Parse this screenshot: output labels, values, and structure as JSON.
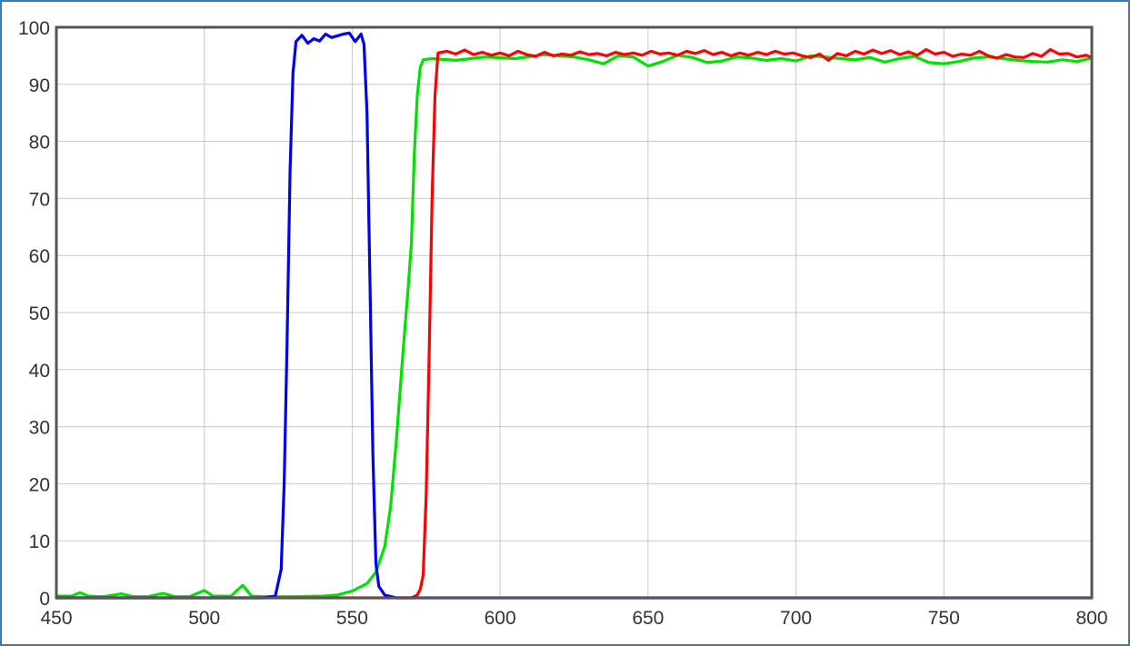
{
  "chart_data": {
    "type": "line",
    "title": "",
    "xlabel": "",
    "ylabel": "",
    "xlim": [
      450,
      800
    ],
    "ylim": [
      0,
      100
    ],
    "grid": true,
    "x_ticks": [
      "450",
      "500",
      "550",
      "600",
      "650",
      "700",
      "750",
      "800"
    ],
    "y_ticks": [
      "0",
      "10",
      "20",
      "30",
      "40",
      "50",
      "60",
      "70",
      "80",
      "90",
      "100"
    ],
    "series": [
      {
        "color": "#00e000",
        "points": [
          [
            450,
            0.3
          ],
          [
            455,
            0.3
          ],
          [
            458,
            0.9
          ],
          [
            461,
            0.3
          ],
          [
            466,
            0.2
          ],
          [
            472,
            0.7
          ],
          [
            476,
            0.2
          ],
          [
            481,
            0.2
          ],
          [
            486,
            0.8
          ],
          [
            490,
            0.2
          ],
          [
            495,
            0.2
          ],
          [
            500,
            1.3
          ],
          [
            503,
            0.3
          ],
          [
            509,
            0.3
          ],
          [
            513,
            2.2
          ],
          [
            516,
            0.3
          ],
          [
            520,
            0.2
          ],
          [
            530,
            0.2
          ],
          [
            540,
            0.3
          ],
          [
            545,
            0.5
          ],
          [
            550,
            1.2
          ],
          [
            555,
            2.5
          ],
          [
            558,
            4.5
          ],
          [
            561,
            9
          ],
          [
            563,
            16
          ],
          [
            565,
            28
          ],
          [
            567,
            42
          ],
          [
            569,
            55
          ],
          [
            570,
            62
          ],
          [
            571,
            78
          ],
          [
            572,
            88
          ],
          [
            573,
            93
          ],
          [
            574,
            94.3
          ],
          [
            577,
            94.5
          ],
          [
            585,
            94.2
          ],
          [
            595,
            94.8
          ],
          [
            605,
            94.5
          ],
          [
            615,
            95.2
          ],
          [
            625,
            94.8
          ],
          [
            630,
            94.3
          ],
          [
            635,
            93.6
          ],
          [
            640,
            95.0
          ],
          [
            645,
            94.8
          ],
          [
            650,
            93.2
          ],
          [
            655,
            94.0
          ],
          [
            660,
            95.1
          ],
          [
            665,
            94.7
          ],
          [
            670,
            93.8
          ],
          [
            675,
            94.1
          ],
          [
            680,
            94.8
          ],
          [
            685,
            94.6
          ],
          [
            690,
            94.2
          ],
          [
            695,
            94.5
          ],
          [
            700,
            94.1
          ],
          [
            705,
            95.0
          ],
          [
            710,
            94.8
          ],
          [
            715,
            94.5
          ],
          [
            720,
            94.3
          ],
          [
            725,
            94.7
          ],
          [
            730,
            93.9
          ],
          [
            735,
            94.5
          ],
          [
            740,
            94.9
          ],
          [
            745,
            93.8
          ],
          [
            750,
            93.6
          ],
          [
            755,
            94.0
          ],
          [
            760,
            94.6
          ],
          [
            765,
            94.8
          ],
          [
            770,
            94.5
          ],
          [
            775,
            94.2
          ],
          [
            780,
            94.0
          ],
          [
            785,
            93.9
          ],
          [
            790,
            94.3
          ],
          [
            795,
            94.0
          ],
          [
            800,
            94.6
          ]
        ]
      },
      {
        "color": "#ff0000",
        "points": [
          [
            450,
            0
          ],
          [
            500,
            0
          ],
          [
            550,
            0
          ],
          [
            570,
            0
          ],
          [
            572,
            0.5
          ],
          [
            573,
            1.5
          ],
          [
            574,
            4
          ],
          [
            575,
            18
          ],
          [
            576,
            42
          ],
          [
            577,
            70
          ],
          [
            578,
            88
          ],
          [
            579,
            95.5
          ],
          [
            582,
            95.8
          ],
          [
            585,
            95.3
          ],
          [
            588,
            96.0
          ],
          [
            591,
            95.2
          ],
          [
            594,
            95.6
          ],
          [
            597,
            95.1
          ],
          [
            600,
            95.5
          ],
          [
            603,
            95.0
          ],
          [
            606,
            95.8
          ],
          [
            609,
            95.2
          ],
          [
            612,
            94.9
          ],
          [
            615,
            95.6
          ],
          [
            618,
            95.0
          ],
          [
            621,
            95.3
          ],
          [
            624,
            95.1
          ],
          [
            627,
            95.7
          ],
          [
            630,
            95.2
          ],
          [
            633,
            95.4
          ],
          [
            636,
            95.0
          ],
          [
            639,
            95.6
          ],
          [
            642,
            95.2
          ],
          [
            645,
            95.5
          ],
          [
            648,
            95.1
          ],
          [
            651,
            95.8
          ],
          [
            654,
            95.3
          ],
          [
            657,
            95.5
          ],
          [
            660,
            95.1
          ],
          [
            663,
            95.8
          ],
          [
            666,
            95.4
          ],
          [
            669,
            95.9
          ],
          [
            672,
            95.2
          ],
          [
            675,
            95.6
          ],
          [
            678,
            95.0
          ],
          [
            681,
            95.5
          ],
          [
            684,
            95.1
          ],
          [
            687,
            95.6
          ],
          [
            690,
            95.2
          ],
          [
            693,
            95.8
          ],
          [
            696,
            95.3
          ],
          [
            699,
            95.5
          ],
          [
            702,
            95.0
          ],
          [
            705,
            94.7
          ],
          [
            708,
            95.3
          ],
          [
            711,
            94.2
          ],
          [
            714,
            95.4
          ],
          [
            717,
            95.0
          ],
          [
            720,
            95.8
          ],
          [
            723,
            95.3
          ],
          [
            726,
            96.0
          ],
          [
            729,
            95.4
          ],
          [
            732,
            95.9
          ],
          [
            735,
            95.2
          ],
          [
            738,
            95.7
          ],
          [
            741,
            95.1
          ],
          [
            744,
            96.1
          ],
          [
            747,
            95.3
          ],
          [
            750,
            95.6
          ],
          [
            753,
            94.9
          ],
          [
            756,
            95.3
          ],
          [
            759,
            95.1
          ],
          [
            762,
            95.8
          ],
          [
            765,
            95.0
          ],
          [
            768,
            94.6
          ],
          [
            771,
            95.2
          ],
          [
            774,
            94.8
          ],
          [
            777,
            94.7
          ],
          [
            780,
            95.4
          ],
          [
            783,
            94.9
          ],
          [
            786,
            96.1
          ],
          [
            789,
            95.3
          ],
          [
            792,
            95.4
          ],
          [
            795,
            94.8
          ],
          [
            798,
            95.1
          ],
          [
            800,
            94.7
          ]
        ]
      },
      {
        "color": "#0000ee",
        "points": [
          [
            450,
            0
          ],
          [
            500,
            0
          ],
          [
            520,
            0
          ],
          [
            524,
            0.3
          ],
          [
            526,
            5
          ],
          [
            527,
            20
          ],
          [
            528,
            45
          ],
          [
            529,
            75
          ],
          [
            530,
            92
          ],
          [
            531,
            97.5
          ],
          [
            533,
            98.6
          ],
          [
            535,
            97.2
          ],
          [
            537,
            98.0
          ],
          [
            539,
            97.6
          ],
          [
            541,
            98.8
          ],
          [
            543,
            98.2
          ],
          [
            545,
            98.5
          ],
          [
            547,
            98.8
          ],
          [
            549,
            99.0
          ],
          [
            551,
            97.5
          ],
          [
            553,
            98.8
          ],
          [
            554,
            97.0
          ],
          [
            555,
            85
          ],
          [
            556,
            55
          ],
          [
            557,
            25
          ],
          [
            558,
            6
          ],
          [
            559,
            2
          ],
          [
            561,
            0.5
          ],
          [
            565,
            0
          ],
          [
            600,
            0
          ],
          [
            700,
            0
          ],
          [
            800,
            0
          ]
        ]
      }
    ]
  }
}
